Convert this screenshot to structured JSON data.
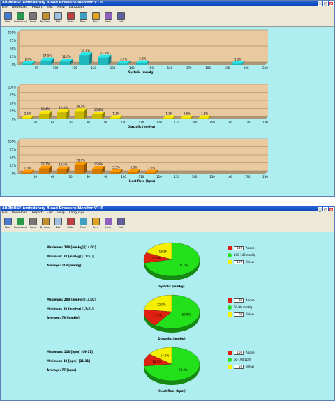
{
  "app": {
    "title": "ABPMOSE Ambulatory Blood Pressure Monitor V1.0",
    "menu": [
      "File",
      "Download",
      "Report",
      "Edit",
      "Help",
      "Language"
    ],
    "toolbar": [
      "New",
      "Download",
      "Save",
      "By hand",
      "Edit",
      "Histo",
      "Pie c",
      "Print",
      "Help",
      "Exit"
    ]
  },
  "colors": {
    "background": "#aeeef0",
    "plot_bg": "#e8c9a0",
    "systolic_bar": "#1fb9bd",
    "diastolic_bar": "#c8b800",
    "heart_bar": "#d27a00",
    "pie_green": "#22e01a",
    "pie_red": "#e02010",
    "pie_yellow": "#f4f000"
  },
  "chart_data": [
    {
      "type": "bar",
      "xlabel": "Systolic (mmHg)",
      "yticks": [
        "100%",
        "75%",
        "50%",
        "25%",
        "0%"
      ],
      "ylim": [
        0,
        100
      ],
      "categories": [
        "90",
        "100",
        "110",
        "120",
        "130",
        "140",
        "150",
        "160",
        "170",
        "180",
        "190",
        "200",
        "210"
      ],
      "values": [
        2.6,
        14.5,
        11.0,
        31.6,
        23.7,
        3.9,
        5.3,
        0,
        0,
        0,
        0,
        1.3,
        0
      ],
      "data_labels": [
        "2.6%",
        "14.5%",
        "11.0%",
        "31.6%",
        "23.7%",
        "3.9%",
        "5.3%",
        "",
        "",
        "",
        "",
        "1.3%",
        ""
      ]
    },
    {
      "type": "bar",
      "xlabel": "Diastolic (mmHg)",
      "yticks": [
        "100%",
        "75%",
        "50%",
        "25%",
        "0%"
      ],
      "ylim": [
        0,
        100
      ],
      "categories": [
        "50",
        "60",
        "70",
        "80",
        "90",
        "100",
        "110",
        "120",
        "130",
        "140",
        "150",
        "160",
        "170",
        "180"
      ],
      "values": [
        2.6,
        18.4,
        22.4,
        26.3,
        15.8,
        1.3,
        0,
        0,
        1.3,
        2.6,
        1.3,
        0,
        0,
        0
      ],
      "data_labels": [
        "2.6%",
        "18.4%",
        "22.4%",
        "26.3%",
        "15.8%",
        "1.3%",
        "",
        "",
        "1.3%",
        "2.6%",
        "1.3%",
        "",
        "",
        ""
      ]
    },
    {
      "type": "bar",
      "xlabel": "Heart Rate (bpm)",
      "yticks": [
        "100%",
        "75%",
        "50%",
        "25%",
        "0%"
      ],
      "ylim": [
        0,
        100
      ],
      "categories": [
        "50",
        "60",
        "70",
        "80",
        "90",
        "100",
        "110",
        "120",
        "130",
        "140",
        "150",
        "160",
        "170",
        "180"
      ],
      "values": [
        1.3,
        17.1,
        14.5,
        28.9,
        15.8,
        5.3,
        5.3,
        2.6,
        0,
        0,
        0,
        0,
        0,
        0
      ],
      "data_labels": [
        "1.3%",
        "17.1%",
        "14.5%",
        "28.9%",
        "15.8%",
        "5.3%",
        "5.3%",
        "2.6%",
        "",
        "",
        "",
        "",
        "",
        ""
      ]
    }
  ],
  "pies": [
    {
      "stats": [
        "Maximum: 208 [mmHg] [14:02]",
        "Minimum: 88 [mmHg] [17:51]",
        "Average: 118 [mmHg]"
      ],
      "caption": "Systolic (mmHg)",
      "slices": [
        {
          "value": 71.6,
          "label": "71.6%"
        },
        {
          "value": 10.1,
          "label": "10.1%"
        },
        {
          "value": 18.3,
          "label": "18.3%"
        }
      ],
      "legend": [
        {
          "value": "140",
          "text": "Above"
        },
        {
          "value": "",
          "text": "100-140 mmHg"
        },
        {
          "value": "100",
          "text": "Below"
        }
      ]
    },
    {
      "stats": [
        "Maximum: 208 [mmHg] [14:02]",
        "Minimum: 58 [mmHg] [17:51]",
        "Average: 78 [mmHg]"
      ],
      "caption": "Diastolic (mmHg)",
      "slices": [
        {
          "value": 60.0,
          "label": "60.0%"
        },
        {
          "value": 17.1,
          "label": "17.1%"
        },
        {
          "value": 22.9,
          "label": "22.9%"
        }
      ],
      "legend": [
        {
          "value": "90",
          "text": "Above"
        },
        {
          "value": "",
          "text": "60-90 mmHg"
        },
        {
          "value": "60",
          "text": "Below"
        }
      ]
    },
    {
      "stats": [
        "Maximum: 118 [bpm] [09:11]",
        "Minimum: 48 [bpm] [21:31]",
        "Average: 77 [bpm]"
      ],
      "caption": "Heart Rate (bpm)",
      "slices": [
        {
          "value": 73.0,
          "label": "73.0%"
        },
        {
          "value": 12.1,
          "label": "12.1%"
        },
        {
          "value": 14.9,
          "label": "14.9%"
        }
      ],
      "legend": [
        {
          "value": "100",
          "text": "Above"
        },
        {
          "value": "",
          "text": "60-100 bpm"
        },
        {
          "value": "50",
          "text": "Below"
        }
      ]
    }
  ]
}
